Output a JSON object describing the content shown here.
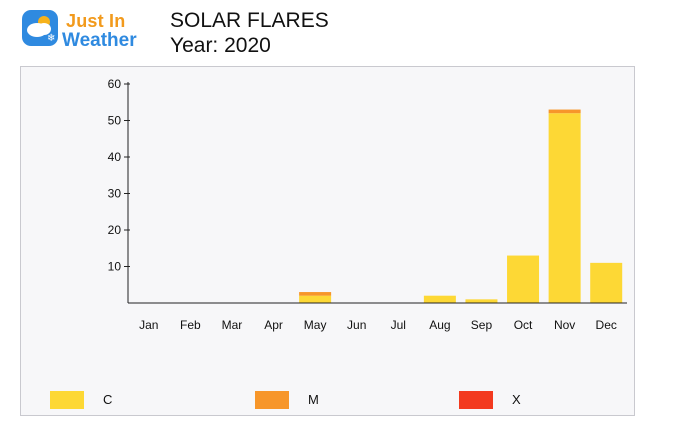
{
  "logo": {
    "line1": "Just In",
    "line2": "Weather"
  },
  "title": {
    "line1": "SOLAR FLARES",
    "line2": "Year: 2020"
  },
  "colors": {
    "C": "#fdd835",
    "M": "#f7962a",
    "X": "#f33a1f",
    "panel_bg": "#f7f7f9",
    "brand_blue": "#2f8ae0",
    "brand_orange": "#f29a1c"
  },
  "chart_data": {
    "type": "bar",
    "stacked": true,
    "categories": [
      "Jan",
      "Feb",
      "Mar",
      "Apr",
      "May",
      "Jun",
      "Jul",
      "Aug",
      "Sep",
      "Oct",
      "Nov",
      "Dec"
    ],
    "series": [
      {
        "name": "C",
        "values": [
          0,
          0,
          0,
          0,
          2,
          0,
          0,
          2,
          1,
          13,
          52,
          11
        ]
      },
      {
        "name": "M",
        "values": [
          0,
          0,
          0,
          0,
          1,
          0,
          0,
          0,
          0,
          0,
          1,
          0
        ]
      },
      {
        "name": "X",
        "values": [
          0,
          0,
          0,
          0,
          0,
          0,
          0,
          0,
          0,
          0,
          0,
          0
        ]
      }
    ],
    "yticks": [
      10,
      20,
      30,
      40,
      50,
      60
    ],
    "ylim": [
      0,
      60
    ],
    "grid": false,
    "legend_position": "bottom"
  }
}
